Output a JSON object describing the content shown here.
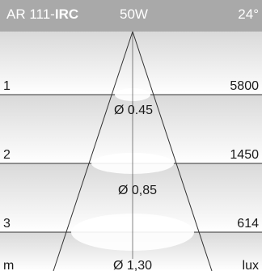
{
  "header": {
    "model_prefix": "AR 111-",
    "model_bold": "IRC",
    "power": "50W",
    "beam_angle": "24°"
  },
  "rows": [
    {
      "distance": "1",
      "lux": "5800",
      "diameter": "Ø 0.45"
    },
    {
      "distance": "2",
      "lux": "1450",
      "diameter": "Ø 0,85"
    },
    {
      "distance": "3",
      "lux": "614",
      "diameter": "Ø 1,30"
    }
  ],
  "footer": {
    "distance_unit": "m",
    "illuminance_unit": "lux"
  },
  "colors": {
    "header_bg": "#a9a9a9",
    "gradient_top": "#d9d9d9",
    "gradient_bottom": "#ffffff",
    "line": "#333333",
    "beam_ellipse": "#c8c8c8"
  }
}
